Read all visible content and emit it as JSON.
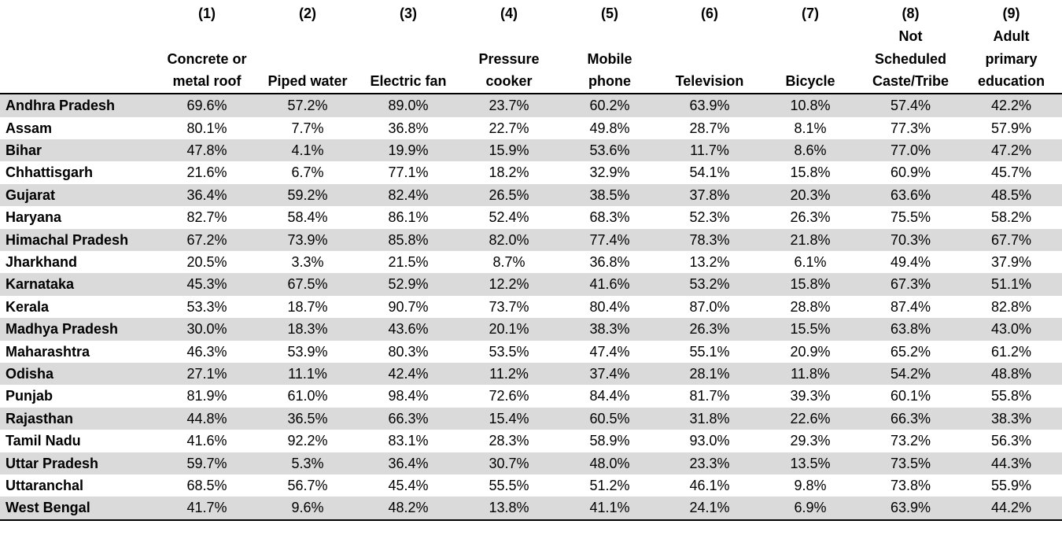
{
  "column_numbers": [
    "(1)",
    "(2)",
    "(3)",
    "(4)",
    "(5)",
    "(6)",
    "(7)",
    "(8)",
    "(9)"
  ],
  "column_labels": [
    [
      "Concrete or",
      "metal roof"
    ],
    [
      "Piped water"
    ],
    [
      "Electric fan"
    ],
    [
      "Pressure",
      "cooker"
    ],
    [
      "Mobile",
      "phone"
    ],
    [
      "Television"
    ],
    [
      "Bicycle"
    ],
    [
      "Not",
      "Scheduled",
      "Caste/Tribe"
    ],
    [
      "Adult",
      "primary",
      "education"
    ]
  ],
  "rows": [
    {
      "state": "Andhra Pradesh",
      "values": [
        "69.6%",
        "57.2%",
        "89.0%",
        "23.7%",
        "60.2%",
        "63.9%",
        "10.8%",
        "57.4%",
        "42.2%"
      ]
    },
    {
      "state": "Assam",
      "values": [
        "80.1%",
        "7.7%",
        "36.8%",
        "22.7%",
        "49.8%",
        "28.7%",
        "8.1%",
        "77.3%",
        "57.9%"
      ]
    },
    {
      "state": "Bihar",
      "values": [
        "47.8%",
        "4.1%",
        "19.9%",
        "15.9%",
        "53.6%",
        "11.7%",
        "8.6%",
        "77.0%",
        "47.2%"
      ]
    },
    {
      "state": "Chhattisgarh",
      "values": [
        "21.6%",
        "6.7%",
        "77.1%",
        "18.2%",
        "32.9%",
        "54.1%",
        "15.8%",
        "60.9%",
        "45.7%"
      ]
    },
    {
      "state": "Gujarat",
      "values": [
        "36.4%",
        "59.2%",
        "82.4%",
        "26.5%",
        "38.5%",
        "37.8%",
        "20.3%",
        "63.6%",
        "48.5%"
      ]
    },
    {
      "state": "Haryana",
      "values": [
        "82.7%",
        "58.4%",
        "86.1%",
        "52.4%",
        "68.3%",
        "52.3%",
        "26.3%",
        "75.5%",
        "58.2%"
      ]
    },
    {
      "state": "Himachal Pradesh",
      "values": [
        "67.2%",
        "73.9%",
        "85.8%",
        "82.0%",
        "77.4%",
        "78.3%",
        "21.8%",
        "70.3%",
        "67.7%"
      ]
    },
    {
      "state": "Jharkhand",
      "values": [
        "20.5%",
        "3.3%",
        "21.5%",
        "8.7%",
        "36.8%",
        "13.2%",
        "6.1%",
        "49.4%",
        "37.9%"
      ]
    },
    {
      "state": "Karnataka",
      "values": [
        "45.3%",
        "67.5%",
        "52.9%",
        "12.2%",
        "41.6%",
        "53.2%",
        "15.8%",
        "67.3%",
        "51.1%"
      ]
    },
    {
      "state": "Kerala",
      "values": [
        "53.3%",
        "18.7%",
        "90.7%",
        "73.7%",
        "80.4%",
        "87.0%",
        "28.8%",
        "87.4%",
        "82.8%"
      ]
    },
    {
      "state": "Madhya Pradesh",
      "values": [
        "30.0%",
        "18.3%",
        "43.6%",
        "20.1%",
        "38.3%",
        "26.3%",
        "15.5%",
        "63.8%",
        "43.0%"
      ]
    },
    {
      "state": "Maharashtra",
      "values": [
        "46.3%",
        "53.9%",
        "80.3%",
        "53.5%",
        "47.4%",
        "55.1%",
        "20.9%",
        "65.2%",
        "61.2%"
      ]
    },
    {
      "state": "Odisha",
      "values": [
        "27.1%",
        "11.1%",
        "42.4%",
        "11.2%",
        "37.4%",
        "28.1%",
        "11.8%",
        "54.2%",
        "48.8%"
      ]
    },
    {
      "state": "Punjab",
      "values": [
        "81.9%",
        "61.0%",
        "98.4%",
        "72.6%",
        "84.4%",
        "81.7%",
        "39.3%",
        "60.1%",
        "55.8%"
      ]
    },
    {
      "state": "Rajasthan",
      "values": [
        "44.8%",
        "36.5%",
        "66.3%",
        "15.4%",
        "60.5%",
        "31.8%",
        "22.6%",
        "66.3%",
        "38.3%"
      ]
    },
    {
      "state": "Tamil Nadu",
      "values": [
        "41.6%",
        "92.2%",
        "83.1%",
        "28.3%",
        "58.9%",
        "93.0%",
        "29.3%",
        "73.2%",
        "56.3%"
      ]
    },
    {
      "state": "Uttar Pradesh",
      "values": [
        "59.7%",
        "5.3%",
        "36.4%",
        "30.7%",
        "48.0%",
        "23.3%",
        "13.5%",
        "73.5%",
        "44.3%"
      ]
    },
    {
      "state": "Uttaranchal",
      "values": [
        "68.5%",
        "56.7%",
        "45.4%",
        "55.5%",
        "51.2%",
        "46.1%",
        "9.8%",
        "73.8%",
        "55.9%"
      ]
    },
    {
      "state": "West Bengal",
      "values": [
        "41.7%",
        "9.6%",
        "48.2%",
        "13.8%",
        "41.1%",
        "24.1%",
        "6.9%",
        "63.9%",
        "44.2%"
      ]
    }
  ],
  "colors": {
    "stripe": "#dadada",
    "rule": "#000000"
  }
}
